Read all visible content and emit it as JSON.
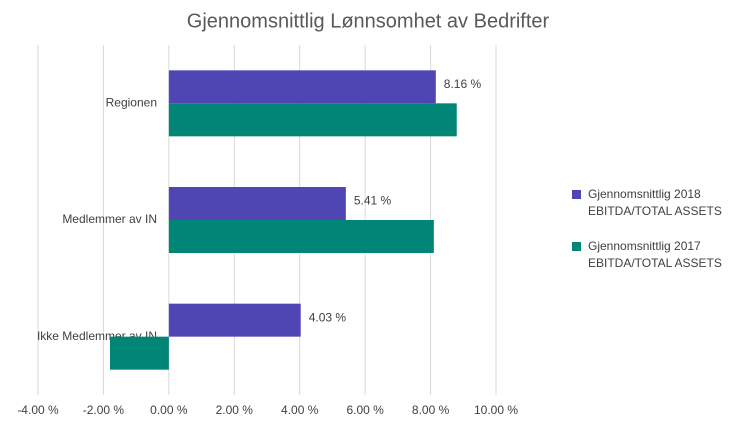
{
  "chart_data": {
    "type": "barh",
    "title": "Gjennomsnittlig Lønnsomhet av Bedrifter",
    "categories": [
      "Regionen",
      "Medlemmer av IN",
      "Ikke Medlemmer av IN"
    ],
    "series": [
      {
        "name": "Gjennomsnittlig 2018 EBITDA/TOTAL ASSETS",
        "color": "#4f46b4",
        "values": [
          8.16,
          5.41,
          4.03
        ],
        "value_labels": [
          "8.16 %",
          "5.41 %",
          "4.03 %"
        ]
      },
      {
        "name": "Gjennomsnittlig 2017 EBITDA/TOTAL ASSETS",
        "color": "#008577",
        "values": [
          8.8,
          8.1,
          -1.8
        ]
      }
    ],
    "xlim": [
      -4,
      10
    ],
    "xticks": [
      {
        "value": -4,
        "label": "-4.00 %"
      },
      {
        "value": -2,
        "label": "-2.00 %"
      },
      {
        "value": 0,
        "label": "0.00 %"
      },
      {
        "value": 2,
        "label": "2.00 %"
      },
      {
        "value": 4,
        "label": "4.00 %"
      },
      {
        "value": 6,
        "label": "6.00 %"
      },
      {
        "value": 8,
        "label": "8.00 %"
      },
      {
        "value": 10,
        "label": "10.00 %"
      }
    ],
    "grid": true,
    "legend": "right"
  }
}
